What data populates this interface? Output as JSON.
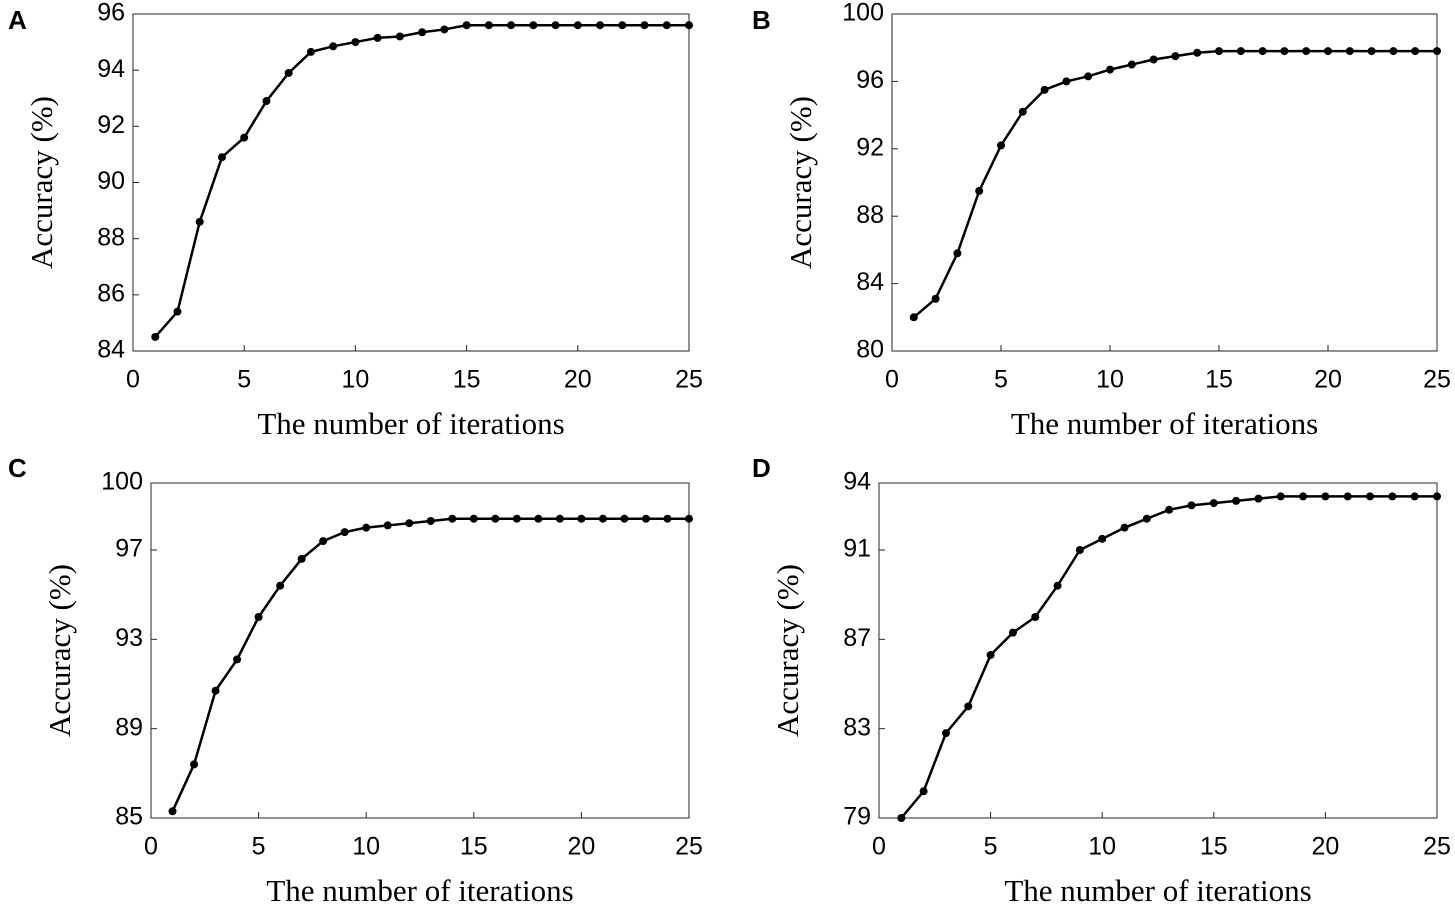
{
  "chart_data": [
    {
      "type": "line",
      "label": "A",
      "xlabel": "The number of iterations",
      "ylabel": "Accuracy (%)",
      "color": "#000000",
      "x": [
        1,
        2,
        3,
        4,
        5,
        6,
        7,
        8,
        9,
        10,
        11,
        12,
        13,
        14,
        15,
        16,
        17,
        18,
        19,
        20,
        21,
        22,
        23,
        24,
        25
      ],
      "values": [
        84.5,
        85.4,
        88.6,
        90.9,
        91.6,
        92.9,
        93.9,
        94.65,
        94.85,
        95.0,
        95.15,
        95.2,
        95.35,
        95.45,
        95.6,
        95.6,
        95.6,
        95.6,
        95.6,
        95.6,
        95.6,
        95.6,
        95.6,
        95.6,
        95.6
      ],
      "xlim": [
        0,
        25
      ],
      "xticks": [
        0,
        5,
        10,
        15,
        20,
        25
      ],
      "ylim": [
        84,
        96
      ],
      "yticks": [
        84,
        86,
        88,
        90,
        92,
        94,
        96
      ],
      "grid": false
    },
    {
      "type": "line",
      "label": "B",
      "xlabel": "The number of iterations",
      "ylabel": "Accuracy (%)",
      "color": "#000000",
      "x": [
        1,
        2,
        3,
        4,
        5,
        6,
        7,
        8,
        9,
        10,
        11,
        12,
        13,
        14,
        15,
        16,
        17,
        18,
        19,
        20,
        21,
        22,
        23,
        24,
        25
      ],
      "values": [
        82.0,
        83.1,
        85.8,
        89.5,
        92.2,
        94.2,
        95.5,
        96.0,
        96.3,
        96.7,
        97.0,
        97.3,
        97.5,
        97.7,
        97.8,
        97.8,
        97.8,
        97.8,
        97.8,
        97.8,
        97.8,
        97.8,
        97.8,
        97.8,
        97.8
      ],
      "xlim": [
        0,
        25
      ],
      "xticks": [
        0,
        5,
        10,
        15,
        20,
        25
      ],
      "ylim": [
        80,
        100
      ],
      "yticks": [
        80,
        84,
        88,
        92,
        96,
        100
      ],
      "grid": false
    },
    {
      "type": "line",
      "label": "C",
      "xlabel": "The number of iterations",
      "ylabel": "Accuracy (%)",
      "color": "#000000",
      "x": [
        1,
        2,
        3,
        4,
        5,
        6,
        7,
        8,
        9,
        10,
        11,
        12,
        13,
        14,
        15,
        16,
        17,
        18,
        19,
        20,
        21,
        22,
        23,
        24,
        25
      ],
      "values": [
        85.3,
        87.4,
        90.7,
        92.1,
        94.0,
        95.4,
        96.6,
        97.4,
        97.8,
        98.0,
        98.1,
        98.2,
        98.3,
        98.4,
        98.4,
        98.4,
        98.4,
        98.4,
        98.4,
        98.4,
        98.4,
        98.4,
        98.4,
        98.4,
        98.4
      ],
      "xlim": [
        0,
        25
      ],
      "xticks": [
        0,
        5,
        10,
        15,
        20,
        25
      ],
      "ylim": [
        85,
        100
      ],
      "yticks": [
        85,
        89,
        93,
        97,
        100
      ],
      "grid": false
    },
    {
      "type": "line",
      "label": "D",
      "xlabel": "The number of iterations",
      "ylabel": "Accuracy (%)",
      "color": "#000000",
      "x": [
        1,
        2,
        3,
        4,
        5,
        6,
        7,
        8,
        9,
        10,
        11,
        12,
        13,
        14,
        15,
        16,
        17,
        18,
        19,
        20,
        21,
        22,
        23,
        24,
        25
      ],
      "values": [
        79.0,
        80.2,
        82.8,
        84.0,
        86.3,
        87.3,
        88.0,
        89.4,
        91.0,
        91.5,
        92.0,
        92.4,
        92.8,
        93.0,
        93.1,
        93.2,
        93.3,
        93.4,
        93.4,
        93.4,
        93.4,
        93.4,
        93.4,
        93.4,
        93.4
      ],
      "xlim": [
        0,
        25
      ],
      "xticks": [
        0,
        5,
        10,
        15,
        20,
        25
      ],
      "ylim": [
        79,
        94
      ],
      "yticks": [
        79,
        83,
        87,
        91,
        94
      ],
      "grid": false
    }
  ]
}
